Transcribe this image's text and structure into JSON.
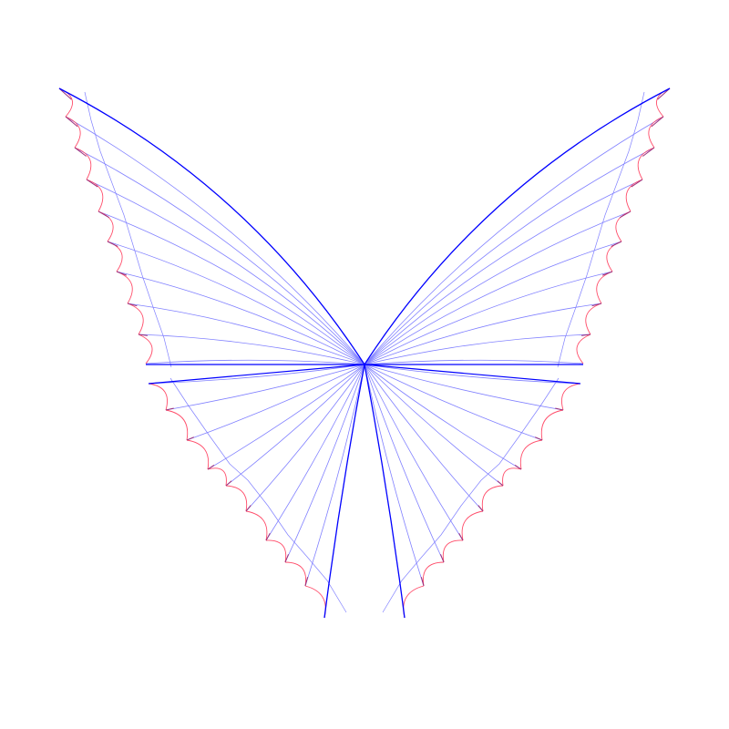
{
  "figure": {
    "description_kind": "butterfly line art",
    "colors": {
      "background": "#ffffff",
      "outline": "#0000ff",
      "veins": "#8080ff",
      "scallops": "#ff4d6a",
      "tips": "#9b2f7a"
    },
    "upper_wing_veins": 10,
    "lower_wing_veins": 13
  }
}
